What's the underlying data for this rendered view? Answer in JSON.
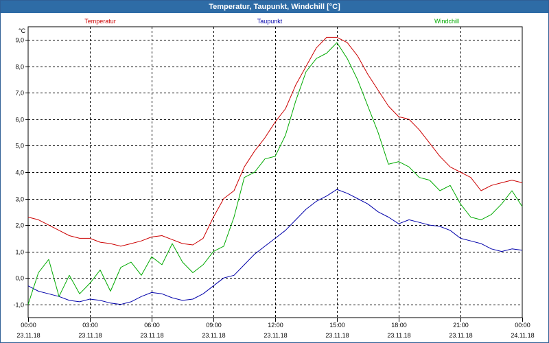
{
  "window": {
    "title": "Temperatur, Taupunkt, Windchill [°C]"
  },
  "colors": {
    "titlebar": "#2e6ca6",
    "temperatur": "#cc0000",
    "taupunkt": "#0000aa",
    "windchill": "#00aa00",
    "grid": "#000000"
  },
  "chart_data": {
    "type": "line",
    "title": "Temperatur, Taupunkt, Windchill [°C]",
    "ylabel": "°C",
    "ylim": [
      -1.5,
      9.5
    ],
    "y_ticks": [
      "-1,0",
      "0,0",
      "1,0",
      "2,0",
      "3,0",
      "4,0",
      "5,0",
      "6,0",
      "7,0",
      "8,0",
      "9,0"
    ],
    "y_tick_values": [
      -1,
      0,
      1,
      2,
      3,
      4,
      5,
      6,
      7,
      8,
      9
    ],
    "x_unit": "hours since 23.11.18 00:00",
    "xlim": [
      0,
      24
    ],
    "x_tick_values": [
      0,
      3,
      6,
      9,
      12,
      15,
      18,
      21,
      24
    ],
    "x_ticks": [
      {
        "time": "00:00",
        "date": "23.11.18"
      },
      {
        "time": "03:00",
        "date": "23.11.18"
      },
      {
        "time": "06:00",
        "date": "23.11.18"
      },
      {
        "time": "09:00",
        "date": "23.11.18"
      },
      {
        "time": "12:00",
        "date": "23.11.18"
      },
      {
        "time": "15:00",
        "date": "23.11.18"
      },
      {
        "time": "18:00",
        "date": "23.11.18"
      },
      {
        "time": "21:00",
        "date": "23.11.18"
      },
      {
        "time": "00:00",
        "date": "24.11.18"
      }
    ],
    "grid": true,
    "legend_placement": "top",
    "series": [
      {
        "name": "Temperatur",
        "color": "#cc0000",
        "x": [
          0,
          0.5,
          1,
          1.5,
          2,
          2.5,
          3,
          3.5,
          4,
          4.5,
          5,
          5.5,
          6,
          6.5,
          7,
          7.5,
          8,
          8.5,
          9,
          9.5,
          10,
          10.5,
          11,
          11.5,
          12,
          12.5,
          13,
          13.5,
          14,
          14.5,
          15,
          15.5,
          16,
          16.5,
          17,
          17.5,
          18,
          18.5,
          19,
          19.5,
          20,
          20.5,
          21,
          21.5,
          22,
          22.5,
          23,
          23.5,
          24
        ],
        "y": [
          2.3,
          2.2,
          2.0,
          1.8,
          1.6,
          1.5,
          1.5,
          1.35,
          1.3,
          1.2,
          1.3,
          1.4,
          1.55,
          1.6,
          1.45,
          1.3,
          1.25,
          1.5,
          2.3,
          3.0,
          3.3,
          4.2,
          4.8,
          5.3,
          5.9,
          6.4,
          7.3,
          8.0,
          8.7,
          9.1,
          9.1,
          8.9,
          8.4,
          7.7,
          7.1,
          6.5,
          6.1,
          6.0,
          5.6,
          5.1,
          4.6,
          4.2,
          4.0,
          3.8,
          3.3,
          3.5,
          3.6,
          3.7,
          3.6
        ]
      },
      {
        "name": "Taupunkt",
        "color": "#0000aa",
        "x": [
          0,
          0.5,
          1,
          1.5,
          2,
          2.5,
          3,
          3.5,
          4,
          4.5,
          5,
          5.5,
          6,
          6.5,
          7,
          7.5,
          8,
          8.5,
          9,
          9.5,
          10,
          10.5,
          11,
          11.5,
          12,
          12.5,
          13,
          13.5,
          14,
          14.5,
          15,
          15.5,
          16,
          16.5,
          17,
          17.5,
          18,
          18.5,
          19,
          19.5,
          20,
          20.5,
          21,
          21.5,
          22,
          22.5,
          23,
          23.5,
          24
        ],
        "y": [
          -0.3,
          -0.5,
          -0.6,
          -0.7,
          -0.85,
          -0.9,
          -0.8,
          -0.85,
          -0.95,
          -1.0,
          -0.9,
          -0.7,
          -0.55,
          -0.6,
          -0.75,
          -0.85,
          -0.8,
          -0.6,
          -0.3,
          0.0,
          0.1,
          0.5,
          0.9,
          1.2,
          1.5,
          1.8,
          2.2,
          2.6,
          2.9,
          3.1,
          3.35,
          3.2,
          3.0,
          2.8,
          2.5,
          2.3,
          2.05,
          2.2,
          2.1,
          2.0,
          1.95,
          1.8,
          1.5,
          1.4,
          1.3,
          1.1,
          1.0,
          1.1,
          1.05
        ]
      },
      {
        "name": "Windchill",
        "color": "#00aa00",
        "x": [
          0,
          0.5,
          1,
          1.5,
          2,
          2.5,
          3,
          3.5,
          4,
          4.5,
          5,
          5.5,
          6,
          6.5,
          7,
          7.5,
          8,
          8.5,
          9,
          9.5,
          10,
          10.5,
          11,
          11.5,
          12,
          12.5,
          13,
          13.5,
          14,
          14.5,
          15,
          15.5,
          16,
          16.5,
          17,
          17.5,
          18,
          18.5,
          19,
          19.5,
          20,
          20.5,
          21,
          21.5,
          22,
          22.5,
          23,
          23.5,
          24
        ],
        "y": [
          -1.0,
          0.2,
          0.7,
          -0.7,
          0.1,
          -0.6,
          -0.2,
          0.3,
          -0.5,
          0.4,
          0.6,
          0.1,
          0.8,
          0.5,
          1.3,
          0.6,
          0.2,
          0.5,
          1.0,
          1.2,
          2.3,
          3.8,
          4.0,
          4.5,
          4.6,
          5.4,
          6.7,
          7.8,
          8.3,
          8.5,
          8.9,
          8.3,
          7.5,
          6.5,
          5.5,
          4.3,
          4.4,
          4.2,
          3.8,
          3.7,
          3.3,
          3.5,
          2.8,
          2.3,
          2.2,
          2.4,
          2.8,
          3.3,
          2.7
        ]
      }
    ]
  }
}
